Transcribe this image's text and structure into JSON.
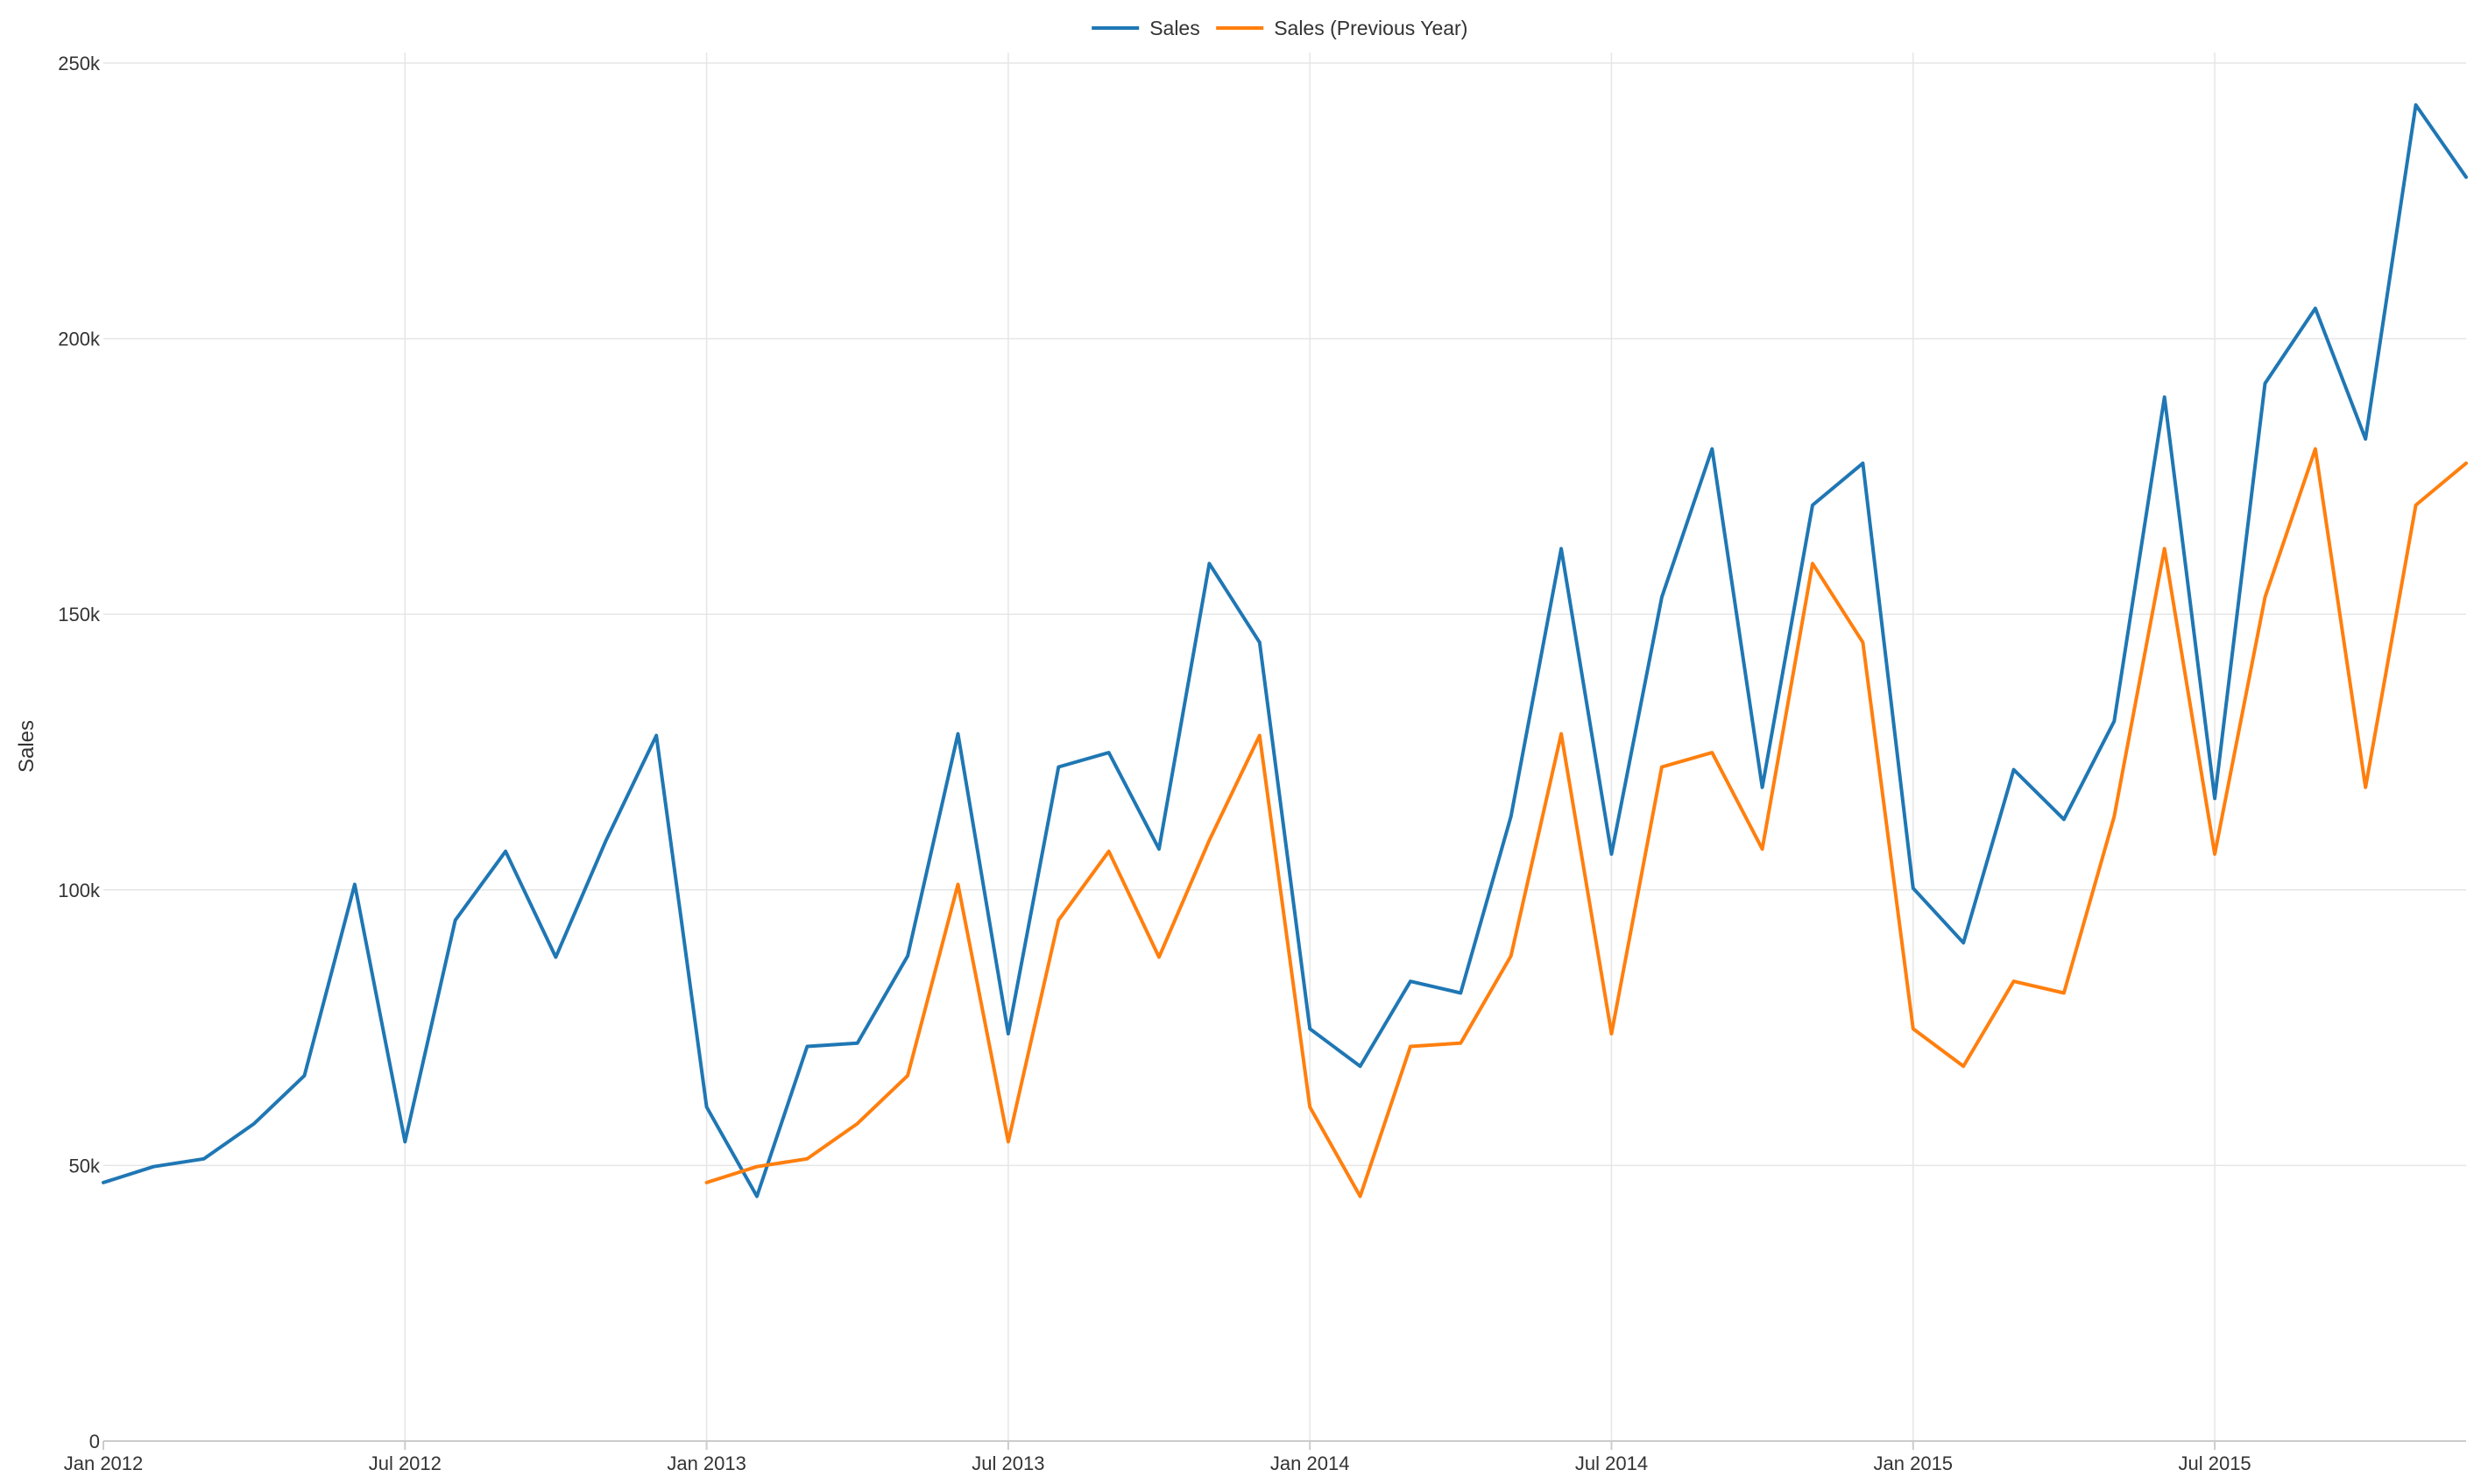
{
  "chart_data": {
    "type": "line",
    "title": "",
    "xlabel": "",
    "ylabel": "Sales",
    "ylim": [
      0,
      250000
    ],
    "y_ticks": [
      0,
      50000,
      100000,
      150000,
      200000,
      250000
    ],
    "y_tick_labels": [
      "0",
      "50k",
      "100k",
      "150k",
      "200k",
      "250k"
    ],
    "x_ticks": [
      "2012-01",
      "2012-07",
      "2013-01",
      "2013-07",
      "2014-01",
      "2014-07",
      "2015-01",
      "2015-07"
    ],
    "x_tick_labels": [
      "Jan 2012",
      "Jul 2012",
      "Jan 2013",
      "Jul 2013",
      "Jan 2014",
      "Jul 2014",
      "Jan 2015",
      "Jul 2015"
    ],
    "x_range": [
      "2012-01",
      "2015-12"
    ],
    "grid": true,
    "legend_position": "top-center",
    "series": [
      {
        "name": "Sales",
        "color": "#1f77b4",
        "x": [
          "2012-01",
          "2012-02",
          "2012-03",
          "2012-04",
          "2012-05",
          "2012-06",
          "2012-07",
          "2012-08",
          "2012-09",
          "2012-10",
          "2012-11",
          "2012-12",
          "2013-01",
          "2013-02",
          "2013-03",
          "2013-04",
          "2013-05",
          "2013-06",
          "2013-07",
          "2013-08",
          "2013-09",
          "2013-10",
          "2013-11",
          "2013-12",
          "2014-01",
          "2014-02",
          "2014-03",
          "2014-04",
          "2014-05",
          "2014-06",
          "2014-07",
          "2014-08",
          "2014-09",
          "2014-10",
          "2014-11",
          "2014-12",
          "2015-01",
          "2015-02",
          "2015-03",
          "2015-04",
          "2015-05",
          "2015-06",
          "2015-07",
          "2015-08",
          "2015-09",
          "2015-10",
          "2015-11",
          "2015-12"
        ],
        "values": [
          46900,
          49800,
          51200,
          57600,
          66300,
          101000,
          54300,
          94500,
          107000,
          87800,
          109000,
          128000,
          60600,
          44400,
          71600,
          72200,
          88000,
          128300,
          73900,
          122300,
          124900,
          107400,
          159200,
          144900,
          74800,
          68000,
          83400,
          81300,
          113300,
          161900,
          106500,
          153100,
          180000,
          118600,
          169800,
          177400,
          100300,
          90400,
          121800,
          112800,
          130600,
          189400,
          116600,
          191900,
          205500,
          181800,
          242400,
          229300
        ]
      },
      {
        "name": "Sales (Previous Year)",
        "color": "#ff7f0e",
        "x": [
          "2013-01",
          "2013-02",
          "2013-03",
          "2013-04",
          "2013-05",
          "2013-06",
          "2013-07",
          "2013-08",
          "2013-09",
          "2013-10",
          "2013-11",
          "2013-12",
          "2014-01",
          "2014-02",
          "2014-03",
          "2014-04",
          "2014-05",
          "2014-06",
          "2014-07",
          "2014-08",
          "2014-09",
          "2014-10",
          "2014-11",
          "2014-12",
          "2015-01",
          "2015-02",
          "2015-03",
          "2015-04",
          "2015-05",
          "2015-06",
          "2015-07",
          "2015-08",
          "2015-09",
          "2015-10",
          "2015-11",
          "2015-12"
        ],
        "values": [
          46900,
          49800,
          51200,
          57600,
          66300,
          101000,
          54300,
          94500,
          107000,
          87800,
          109000,
          128000,
          60600,
          44400,
          71600,
          72200,
          88000,
          128300,
          73900,
          122300,
          124900,
          107400,
          159200,
          144900,
          74800,
          68000,
          83400,
          81300,
          113300,
          161900,
          106500,
          153100,
          180000,
          118600,
          169800,
          177400
        ]
      }
    ]
  }
}
